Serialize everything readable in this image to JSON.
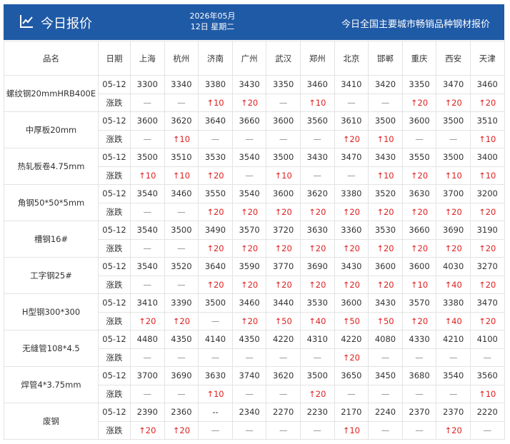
{
  "header": {
    "title": "今日报价",
    "date_line1": "2026年05月",
    "date_line2": "12日 星期二",
    "subtitle": "今日全国主要城市畅销品种钢材报价"
  },
  "table": {
    "columns": [
      "品名",
      "日期",
      "上海",
      "杭州",
      "济南",
      "广州",
      "武汉",
      "郑州",
      "北京",
      "邯郸",
      "重庆",
      "西安",
      "天津"
    ],
    "rows": [
      {
        "name": "螺纹钢20mmHRB400E",
        "date": "05-12",
        "change_label": "涨跌",
        "prices": [
          3300,
          3340,
          3380,
          3430,
          3350,
          3460,
          3410,
          3420,
          3350,
          3470,
          3460
        ],
        "changes": [
          "—",
          "—",
          "↑10",
          "↑20",
          "—",
          "↑10",
          "—",
          "—",
          "↑20",
          "↑20",
          "↑20"
        ]
      },
      {
        "name": "中厚板20mm",
        "date": "05-12",
        "change_label": "涨跌",
        "prices": [
          3600,
          3620,
          3640,
          3660,
          3600,
          3560,
          3610,
          3500,
          3600,
          3500,
          3510
        ],
        "changes": [
          "—",
          "↑10",
          "—",
          "—",
          "—",
          "—",
          "↑20",
          "↑10",
          "—",
          "—",
          "↑10"
        ]
      },
      {
        "name": "热轧板卷4.75mm",
        "date": "05-12",
        "change_label": "涨跌",
        "prices": [
          3500,
          3510,
          3530,
          3540,
          3500,
          3430,
          3470,
          3430,
          3550,
          3500,
          3400
        ],
        "changes": [
          "↑10",
          "↑10",
          "↑20",
          "—",
          "↑10",
          "—",
          "—",
          "↑10",
          "↑20",
          "↑10",
          "↑10"
        ]
      },
      {
        "name": "角钢50*50*5mm",
        "date": "05-12",
        "change_label": "涨跌",
        "prices": [
          3540,
          3460,
          3550,
          3540,
          3600,
          3620,
          3380,
          3520,
          3630,
          3700,
          3200
        ],
        "changes": [
          "—",
          "—",
          "↑20",
          "↑20",
          "↑20",
          "↑20",
          "↑20",
          "↑20",
          "↑20",
          "↑20",
          "↑20"
        ]
      },
      {
        "name": "槽钢16#",
        "date": "05-12",
        "change_label": "涨跌",
        "prices": [
          3540,
          3500,
          3490,
          3570,
          3720,
          3630,
          3360,
          3530,
          3660,
          3690,
          3190
        ],
        "changes": [
          "—",
          "—",
          "↑20",
          "↑20",
          "↑20",
          "↑20",
          "↑20",
          "↑20",
          "↑20",
          "↑20",
          "↑20"
        ]
      },
      {
        "name": "工字钢25#",
        "date": "05-12",
        "change_label": "涨跌",
        "prices": [
          3540,
          3520,
          3640,
          3590,
          3770,
          3690,
          3430,
          3600,
          3600,
          4030,
          3270
        ],
        "changes": [
          "—",
          "—",
          "↑20",
          "↑20",
          "↑20",
          "↑20",
          "↑20",
          "↑20",
          "↑10",
          "↑40",
          "↑20"
        ]
      },
      {
        "name": "H型钢300*300",
        "date": "05-12",
        "change_label": "涨跌",
        "prices": [
          3410,
          3390,
          3500,
          3460,
          3440,
          3530,
          3600,
          3430,
          3570,
          3380,
          3470
        ],
        "changes": [
          "↑20",
          "↑20",
          "—",
          "↑20",
          "↑50",
          "↑40",
          "↑50",
          "↑50",
          "↑20",
          "↑40",
          "↑20"
        ]
      },
      {
        "name": "无缝管108*4.5",
        "date": "05-12",
        "change_label": "涨跌",
        "prices": [
          4480,
          4350,
          4140,
          4350,
          4220,
          4310,
          4220,
          4080,
          4330,
          4210,
          4100
        ],
        "changes": [
          "—",
          "—",
          "—",
          "—",
          "—",
          "—",
          "↑20",
          "—",
          "—",
          "—",
          "—"
        ]
      },
      {
        "name": "焊管4*3.75mm",
        "date": "05-12",
        "change_label": "涨跌",
        "prices": [
          3700,
          3690,
          3630,
          3740,
          3620,
          3500,
          3650,
          3450,
          3680,
          3540,
          3560
        ],
        "changes": [
          "—",
          "—",
          "↑10",
          "—",
          "—",
          "↑20",
          "—",
          "—",
          "—",
          "—",
          "↑10"
        ]
      },
      {
        "name": "废钢",
        "date": "05-12",
        "change_label": "涨跌",
        "prices": [
          2390,
          2360,
          "--",
          2340,
          2270,
          2230,
          2170,
          2240,
          2370,
          2370,
          2220
        ],
        "changes": [
          "↑20",
          "↑20",
          "—",
          "—",
          "—",
          "—",
          "↑10",
          "—",
          "—",
          "↑20",
          "—"
        ]
      }
    ]
  }
}
